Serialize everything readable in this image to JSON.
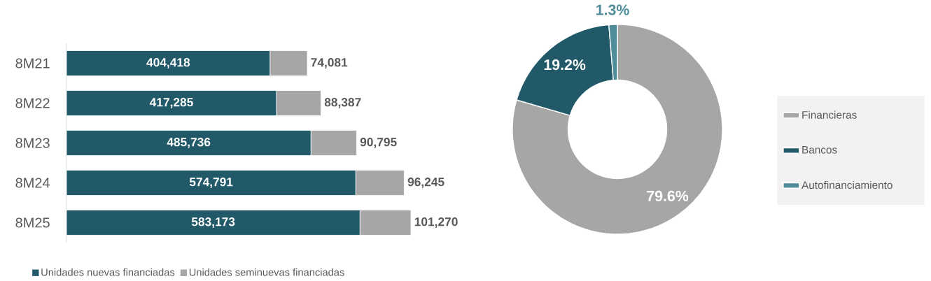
{
  "chart_data": [
    {
      "type": "bar",
      "orientation": "horizontal",
      "stacked": true,
      "categories": [
        "8M21",
        "8M22",
        "8M23",
        "8M24",
        "8M25"
      ],
      "legend": "bottom",
      "series": [
        {
          "name": "Unidades nuevas financiadas",
          "color": "#215968",
          "values": [
            404418,
            417285,
            485736,
            574791,
            583173
          ],
          "value_labels": [
            "404,418",
            "417,285",
            "485,736",
            "574,791",
            "583,173"
          ]
        },
        {
          "name": "Unidades seminuevas financiadas",
          "color": "#a6a6a6",
          "values": [
            74081,
            88387,
            90795,
            96245,
            101270
          ],
          "value_labels": [
            "74,081",
            "88,387",
            "90,795",
            "96,245",
            "101,270"
          ]
        }
      ]
    },
    {
      "type": "donut",
      "categories": [
        "Financieras",
        "Bancos",
        "Autofinanciamiento"
      ],
      "values": [
        79.6,
        19.2,
        1.3
      ],
      "colors": [
        "#a6a6a6",
        "#215968",
        "#4f8d9a"
      ],
      "value_labels": [
        "79.6%",
        "19.2%",
        "1.3%"
      ],
      "legend": "right"
    }
  ]
}
